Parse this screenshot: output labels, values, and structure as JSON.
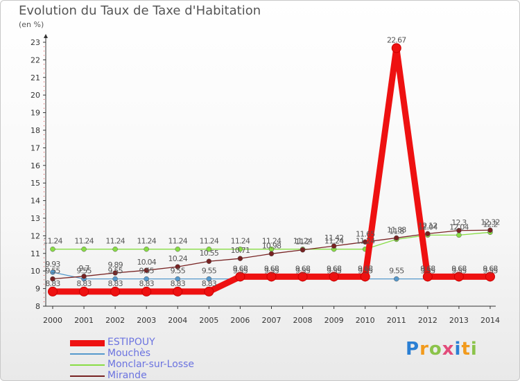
{
  "title": "Evolution du Taux de Taxe d'Habitation",
  "unit_label": "(en %)",
  "logo_text": "Proxiti",
  "chart_data": {
    "type": "line",
    "title": "Evolution du Taux de Taxe d'Habitation",
    "ylabel": "(en %)",
    "xlabel": "",
    "x": [
      "2000",
      "2001",
      "2002",
      "2003",
      "2004",
      "2005",
      "2006",
      "2007",
      "2008",
      "2009",
      "2010",
      "2011",
      "2012",
      "2013",
      "2014"
    ],
    "ylim": [
      8,
      23
    ],
    "yticks": [
      8,
      9,
      10,
      11,
      12,
      13,
      14,
      15,
      16,
      17,
      18,
      19,
      20,
      21,
      22,
      23
    ],
    "grid": false,
    "legend_position": "bottom-left",
    "series": [
      {
        "name": "ESTIPOUY",
        "color": "#ee1111",
        "values": [
          8.83,
          8.83,
          8.83,
          8.83,
          8.83,
          8.83,
          9.68,
          9.68,
          9.68,
          9.68,
          9.68,
          22.67,
          9.68,
          9.68,
          9.68
        ],
        "labels": [
          "8.83",
          "8.83",
          "8.83",
          "8.83",
          "8.83",
          "8.83",
          "9.68",
          "9.68",
          "9.68",
          "9.68",
          "9.68",
          "22.67",
          "9.68",
          "9.68",
          "9.68"
        ]
      },
      {
        "name": "Mouchès",
        "color": "#5599cc",
        "values": [
          9.93,
          9.55,
          9.55,
          9.55,
          9.55,
          9.55,
          9.55,
          9.55,
          9.55,
          9.55,
          9.55,
          9.55,
          9.55,
          9.55,
          9.55
        ],
        "labels": [
          "9.93",
          "9.55",
          "9.55",
          "9.55",
          "9.55",
          "9.55",
          "9.55",
          "9.55",
          "9.55",
          "9.55",
          "9.55",
          "9.55",
          "9.55",
          "9.55",
          "9.55"
        ]
      },
      {
        "name": "Monclar-sur-Losse",
        "color": "#88dd44",
        "values": [
          11.24,
          11.24,
          11.24,
          11.24,
          11.24,
          11.24,
          11.24,
          11.24,
          11.24,
          11.24,
          11.24,
          11.8,
          12.04,
          12.04,
          12.2
        ],
        "labels": [
          "11.24",
          "11.24",
          "11.24",
          "11.24",
          "11.24",
          "11.24",
          "11.24",
          "11.24",
          "11.24",
          "11.24",
          "11.24",
          "11.8",
          "12.04",
          "12.04",
          "12.2"
        ]
      },
      {
        "name": "Mirande",
        "color": "#772222",
        "values": [
          9.55,
          9.7,
          9.89,
          10.04,
          10.24,
          10.55,
          10.71,
          10.98,
          11.2,
          11.42,
          11.65,
          11.88,
          12.12,
          12.3,
          12.32
        ],
        "labels": [
          "9.55",
          "9.7",
          "9.89",
          "10.04",
          "10.24",
          "10.55",
          "10.71",
          "10.98",
          "11.2",
          "11.42",
          "11.65",
          "11.88",
          "12.12",
          "12.3",
          "12.32"
        ]
      }
    ]
  }
}
